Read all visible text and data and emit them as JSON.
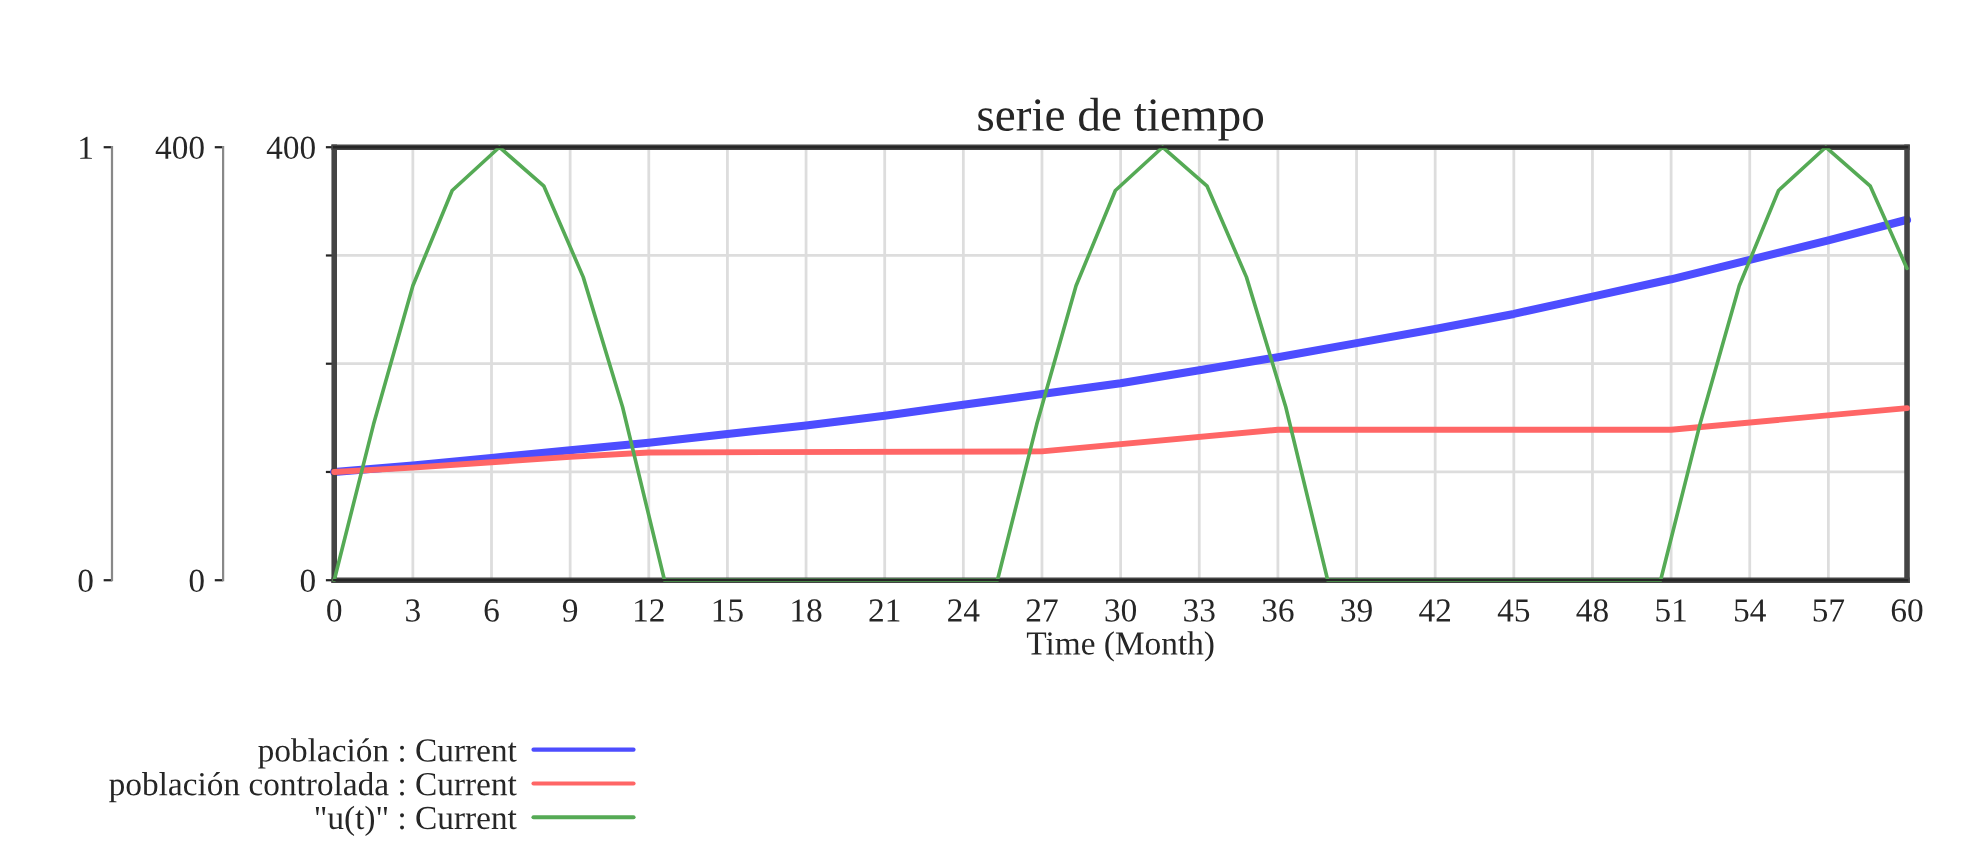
{
  "chart_data": {
    "type": "line",
    "title": "serie de tiempo",
    "xlabel": "Time (Month)",
    "xlim": [
      0,
      60
    ],
    "xticks": [
      0,
      3,
      6,
      9,
      12,
      15,
      18,
      21,
      24,
      27,
      30,
      33,
      36,
      39,
      42,
      45,
      48,
      51,
      54,
      57,
      60
    ],
    "ylim": [
      0,
      400
    ],
    "yticks": [
      0,
      {
        "value": 100,
        "label": null
      },
      {
        "value": 200,
        "label": null
      },
      {
        "value": 300,
        "label": null
      },
      400
    ],
    "y2lim": [
      0,
      400
    ],
    "y2ticks": [
      0,
      400
    ],
    "y3lim": [
      0,
      1
    ],
    "y3ticks": [
      0,
      1
    ],
    "grid": true,
    "legend": "bottom",
    "marker": "none",
    "line_style": "solid",
    "series": [
      {
        "name": "población : Current",
        "color": "#4d4dff",
        "axis": "y",
        "x": [
          0,
          3,
          6,
          9,
          12,
          15,
          18,
          21,
          24,
          27,
          30,
          33,
          36,
          39,
          42,
          45,
          48,
          51,
          54,
          57,
          60
        ],
        "values": [
          100,
          106,
          113,
          120,
          127,
          135,
          143,
          152,
          162,
          172,
          182,
          194,
          206,
          219,
          232,
          246,
          262,
          278,
          296,
          314,
          333
        ]
      },
      {
        "name": "población controlada : Current",
        "color": "#ff6666",
        "axis": "y2",
        "x": [
          0,
          3,
          6,
          9,
          12,
          27,
          36,
          51,
          60
        ],
        "values": [
          100,
          104,
          109,
          114,
          118,
          119,
          139,
          139,
          159
        ]
      },
      {
        "name": "\"u(t)\" : Current",
        "color": "#55aa55",
        "axis": "y3",
        "x": [
          0,
          1.5,
          3,
          4.5,
          6.3,
          8,
          9.5,
          11,
          12.6,
          25.3,
          26.8,
          28.3,
          29.8,
          31.6,
          33.3,
          34.8,
          36.3,
          37.9,
          50.6,
          52.1,
          53.6,
          55.1,
          56.9,
          58.6,
          60
        ],
        "values": [
          0,
          0.36,
          0.68,
          0.9,
          1,
          0.91,
          0.7,
          0.4,
          0,
          0,
          0.36,
          0.68,
          0.9,
          1,
          0.91,
          0.7,
          0.4,
          0,
          0,
          0.36,
          0.68,
          0.9,
          1,
          0.91,
          0.72
        ]
      }
    ]
  }
}
